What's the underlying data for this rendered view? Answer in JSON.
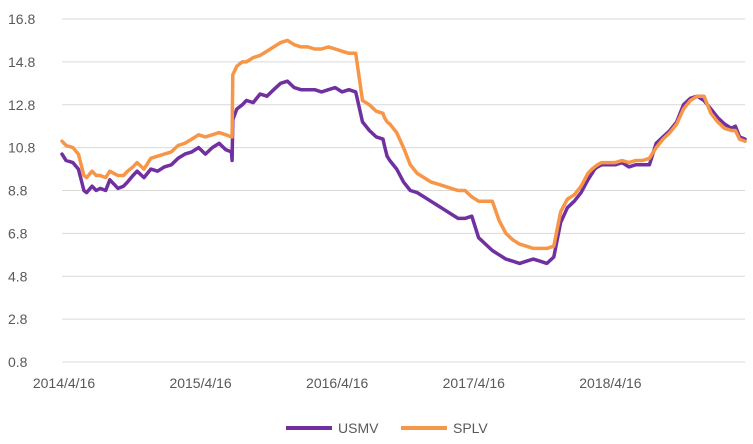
{
  "chart_data": {
    "type": "line",
    "title": "",
    "xlabel": "",
    "ylabel": "",
    "ylim": [
      0.8,
      16.8
    ],
    "yticks": [
      0.8,
      2.8,
      4.8,
      6.8,
      8.8,
      10.8,
      12.8,
      14.8,
      16.8
    ],
    "ytick_labels": [
      "0.8",
      "2.8",
      "4.8",
      "6.8",
      "8.8",
      "10.8",
      "12.8",
      "14.8",
      "16.8"
    ],
    "x_axis": {
      "type": "time",
      "start": "2014/4/16",
      "end": "2019/4/16",
      "tick_labels": [
        "2014/4/16",
        "2015/4/16",
        "2016/4/16",
        "2017/4/16",
        "2018/4/16"
      ],
      "tick_positions": [
        0,
        1,
        2,
        3,
        4
      ]
    },
    "grid": true,
    "legend": {
      "position": "bottom",
      "entries": [
        "USMV",
        "SPLV"
      ]
    },
    "series": [
      {
        "name": "USMV",
        "color": "#7030a0",
        "x": [
          0,
          0.03,
          0.08,
          0.12,
          0.16,
          0.18,
          0.22,
          0.25,
          0.28,
          0.32,
          0.35,
          0.38,
          0.41,
          0.45,
          0.48,
          0.52,
          0.55,
          0.6,
          0.65,
          0.7,
          0.75,
          0.8,
          0.85,
          0.9,
          0.95,
          1.0,
          1.05,
          1.1,
          1.15,
          1.2,
          1.24,
          1.245,
          1.25,
          1.28,
          1.32,
          1.35,
          1.4,
          1.45,
          1.5,
          1.55,
          1.6,
          1.65,
          1.7,
          1.75,
          1.8,
          1.85,
          1.9,
          1.95,
          2.0,
          2.05,
          2.1,
          2.15,
          2.2,
          2.25,
          2.3,
          2.35,
          2.36,
          2.38,
          2.4,
          2.45,
          2.5,
          2.55,
          2.6,
          2.65,
          2.7,
          2.75,
          2.8,
          2.85,
          2.9,
          2.95,
          3.0,
          3.05,
          3.1,
          3.15,
          3.2,
          3.25,
          3.3,
          3.35,
          3.4,
          3.45,
          3.5,
          3.55,
          3.6,
          3.65,
          3.7,
          3.75,
          3.8,
          3.85,
          3.88,
          3.9,
          3.92,
          3.95,
          4.0,
          4.05,
          4.1,
          4.15,
          4.2,
          4.25,
          4.3,
          4.35,
          4.4,
          4.45,
          4.5,
          4.55,
          4.6,
          4.65,
          4.7,
          4.75,
          4.8,
          4.85,
          4.9,
          4.93,
          4.96,
          5.0
        ],
        "values": [
          10.5,
          10.2,
          10.1,
          9.8,
          8.8,
          8.7,
          9.0,
          8.8,
          8.9,
          8.8,
          9.3,
          9.1,
          8.9,
          9.0,
          9.2,
          9.5,
          9.7,
          9.4,
          9.8,
          9.7,
          9.9,
          10.0,
          10.3,
          10.5,
          10.6,
          10.8,
          10.5,
          10.8,
          11.0,
          10.7,
          10.6,
          10.2,
          12.1,
          12.6,
          12.8,
          13.0,
          12.9,
          13.3,
          13.2,
          13.5,
          13.8,
          13.9,
          13.6,
          13.5,
          13.5,
          13.5,
          13.4,
          13.5,
          13.6,
          13.4,
          13.5,
          13.4,
          12.0,
          11.6,
          11.3,
          11.2,
          10.9,
          10.4,
          10.2,
          9.8,
          9.2,
          8.8,
          8.7,
          8.5,
          8.3,
          8.1,
          7.9,
          7.7,
          7.5,
          7.5,
          7.6,
          6.6,
          6.3,
          6.0,
          5.8,
          5.6,
          5.5,
          5.4,
          5.5,
          5.6,
          5.5,
          5.4,
          5.7,
          7.3,
          8.0,
          8.3,
          8.7,
          9.3,
          9.6,
          9.8,
          9.9,
          10.0,
          10.0,
          10.0,
          10.1,
          9.9,
          10.0,
          10.0,
          10.0,
          11.0,
          11.3,
          11.6,
          12.0,
          12.8,
          13.1,
          13.2,
          13.0,
          12.6,
          12.2,
          11.9,
          11.7,
          11.8,
          11.3,
          11.2
        ],
        "x_note": "years since 2014/4/16"
      },
      {
        "name": "SPLV",
        "color": "#f79646",
        "x": [
          0,
          0.03,
          0.08,
          0.12,
          0.16,
          0.18,
          0.22,
          0.25,
          0.28,
          0.32,
          0.35,
          0.38,
          0.41,
          0.45,
          0.48,
          0.52,
          0.55,
          0.6,
          0.65,
          0.7,
          0.75,
          0.8,
          0.85,
          0.9,
          0.95,
          1.0,
          1.05,
          1.1,
          1.15,
          1.2,
          1.24,
          1.245,
          1.25,
          1.28,
          1.32,
          1.35,
          1.4,
          1.45,
          1.5,
          1.55,
          1.6,
          1.65,
          1.7,
          1.75,
          1.8,
          1.85,
          1.9,
          1.95,
          2.0,
          2.05,
          2.1,
          2.15,
          2.2,
          2.25,
          2.3,
          2.35,
          2.36,
          2.38,
          2.4,
          2.45,
          2.5,
          2.55,
          2.6,
          2.65,
          2.7,
          2.75,
          2.8,
          2.85,
          2.9,
          2.95,
          3.0,
          3.05,
          3.1,
          3.15,
          3.2,
          3.25,
          3.3,
          3.35,
          3.4,
          3.45,
          3.5,
          3.55,
          3.6,
          3.65,
          3.7,
          3.75,
          3.8,
          3.85,
          3.88,
          3.9,
          3.92,
          3.95,
          4.0,
          4.05,
          4.1,
          4.15,
          4.2,
          4.25,
          4.3,
          4.35,
          4.4,
          4.45,
          4.5,
          4.55,
          4.6,
          4.65,
          4.7,
          4.75,
          4.8,
          4.85,
          4.9,
          4.93,
          4.96,
          5.0
        ],
        "values": [
          11.1,
          10.9,
          10.8,
          10.5,
          9.5,
          9.4,
          9.7,
          9.5,
          9.5,
          9.4,
          9.7,
          9.6,
          9.5,
          9.5,
          9.7,
          9.9,
          10.1,
          9.8,
          10.3,
          10.4,
          10.5,
          10.6,
          10.9,
          11.0,
          11.2,
          11.4,
          11.3,
          11.4,
          11.5,
          11.4,
          11.3,
          11.3,
          14.2,
          14.6,
          14.8,
          14.8,
          15.0,
          15.1,
          15.3,
          15.5,
          15.7,
          15.8,
          15.6,
          15.5,
          15.5,
          15.4,
          15.4,
          15.5,
          15.4,
          15.3,
          15.2,
          15.2,
          13.0,
          12.8,
          12.5,
          12.4,
          12.2,
          12.0,
          11.9,
          11.5,
          10.8,
          10.0,
          9.6,
          9.4,
          9.2,
          9.1,
          9.0,
          8.9,
          8.8,
          8.8,
          8.5,
          8.3,
          8.3,
          8.3,
          7.4,
          6.8,
          6.5,
          6.3,
          6.2,
          6.1,
          6.1,
          6.1,
          6.2,
          7.8,
          8.4,
          8.6,
          9.0,
          9.6,
          9.8,
          9.9,
          10.0,
          10.1,
          10.1,
          10.1,
          10.2,
          10.1,
          10.2,
          10.2,
          10.3,
          10.8,
          11.2,
          11.5,
          11.9,
          12.6,
          13.0,
          13.2,
          13.2,
          12.4,
          12.0,
          11.7,
          11.6,
          11.6,
          11.2,
          11.1
        ],
        "x_note": "years since 2014/4/16"
      }
    ]
  }
}
